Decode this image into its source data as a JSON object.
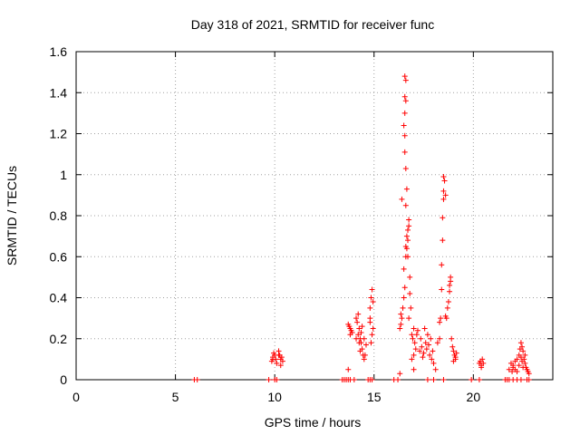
{
  "chart_data": {
    "type": "scatter",
    "title": "Day 318 of 2021, SRMTID for receiver func",
    "xlabel": "GPS time / hours",
    "ylabel": "SRMTID / TECUs",
    "xlim": [
      0,
      24
    ],
    "ylim": [
      0,
      1.6
    ],
    "xticks": [
      0,
      5,
      10,
      15,
      20
    ],
    "xtick_labels": [
      "0",
      "5",
      "10",
      "15",
      "20"
    ],
    "yticks": [
      0,
      0.2,
      0.4,
      0.6,
      0.8,
      1.0,
      1.2,
      1.4,
      1.6
    ],
    "ytick_labels": [
      "0",
      "0.2",
      "0.4",
      "0.6",
      "0.8",
      "1",
      "1.2",
      "1.4",
      "1.6"
    ],
    "grid": true,
    "marker": "+",
    "color": "#ff0000",
    "series": [
      {
        "name": "SRMTID",
        "points": [
          [
            5.95,
            0
          ],
          [
            6.1,
            0
          ],
          [
            9.7,
            0
          ],
          [
            10.0,
            0
          ],
          [
            10.1,
            0
          ],
          [
            9.85,
            0.09
          ],
          [
            9.9,
            0.11
          ],
          [
            9.95,
            0.13
          ],
          [
            10.0,
            0.12
          ],
          [
            10.05,
            0.1
          ],
          [
            10.1,
            0.08
          ],
          [
            9.9,
            0.1
          ],
          [
            10.2,
            0.14
          ],
          [
            10.25,
            0.12
          ],
          [
            10.3,
            0.1
          ],
          [
            10.35,
            0.11
          ],
          [
            10.4,
            0.09
          ],
          [
            10.3,
            0.07
          ],
          [
            10.2,
            0.12
          ],
          [
            13.4,
            0
          ],
          [
            13.5,
            0
          ],
          [
            13.6,
            0
          ],
          [
            13.7,
            0
          ],
          [
            13.8,
            0
          ],
          [
            14.0,
            0
          ],
          [
            14.7,
            0
          ],
          [
            14.8,
            0
          ],
          [
            14.9,
            0
          ],
          [
            13.7,
            0.05
          ],
          [
            13.75,
            0.26
          ],
          [
            13.8,
            0.25
          ],
          [
            13.85,
            0.24
          ],
          [
            13.9,
            0.23
          ],
          [
            13.7,
            0.27
          ],
          [
            13.8,
            0.22
          ],
          [
            14.1,
            0.3
          ],
          [
            14.15,
            0.28
          ],
          [
            14.2,
            0.32
          ],
          [
            14.25,
            0.25
          ],
          [
            14.3,
            0.2
          ],
          [
            14.35,
            0.18
          ],
          [
            14.4,
            0.15
          ],
          [
            14.45,
            0.12
          ],
          [
            14.5,
            0.1
          ],
          [
            14.2,
            0.22
          ],
          [
            14.3,
            0.14
          ],
          [
            14.4,
            0.26
          ],
          [
            14.5,
            0.2
          ],
          [
            14.6,
            0.17
          ],
          [
            14.1,
            0.2
          ],
          [
            14.25,
            0.18
          ],
          [
            14.35,
            0.23
          ],
          [
            14.55,
            0.12
          ],
          [
            14.8,
            0.35
          ],
          [
            14.85,
            0.4
          ],
          [
            14.9,
            0.44
          ],
          [
            14.95,
            0.38
          ],
          [
            14.8,
            0.28
          ],
          [
            14.9,
            0.22
          ],
          [
            14.85,
            0.18
          ],
          [
            14.95,
            0.25
          ],
          [
            14.8,
            0.3
          ],
          [
            16.0,
            0
          ],
          [
            16.2,
            0
          ],
          [
            16.3,
            0.03
          ],
          [
            16.3,
            0.25
          ],
          [
            16.35,
            0.27
          ],
          [
            16.4,
            0.3
          ],
          [
            16.45,
            0.35
          ],
          [
            16.5,
            0.4
          ],
          [
            16.55,
            0.45
          ],
          [
            16.5,
            0.54
          ],
          [
            16.6,
            0.6
          ],
          [
            16.6,
            0.65
          ],
          [
            16.65,
            0.7
          ],
          [
            16.7,
            0.68
          ],
          [
            16.7,
            0.73
          ],
          [
            16.75,
            0.75
          ],
          [
            16.75,
            0.78
          ],
          [
            16.6,
            0.85
          ],
          [
            16.65,
            0.93
          ],
          [
            16.6,
            1.03
          ],
          [
            16.55,
            1.11
          ],
          [
            16.55,
            1.19
          ],
          [
            16.5,
            1.24
          ],
          [
            16.55,
            1.3
          ],
          [
            16.6,
            1.36
          ],
          [
            16.55,
            1.38
          ],
          [
            16.6,
            1.46
          ],
          [
            16.55,
            1.48
          ],
          [
            16.4,
            0.88
          ],
          [
            16.8,
            0.5
          ],
          [
            16.8,
            0.42
          ],
          [
            16.85,
            0.35
          ],
          [
            16.75,
            0.3
          ],
          [
            16.7,
            0.6
          ],
          [
            16.65,
            0.64
          ],
          [
            16.35,
            0.32
          ],
          [
            16.9,
            0.22
          ],
          [
            16.95,
            0.2
          ],
          [
            17.0,
            0.25
          ],
          [
            17.05,
            0.18
          ],
          [
            17.1,
            0.15
          ],
          [
            17.15,
            0.22
          ],
          [
            17.2,
            0.24
          ],
          [
            16.9,
            0.1
          ],
          [
            17.0,
            0.12
          ],
          [
            17.0,
            0.05
          ],
          [
            17.3,
            0.14
          ],
          [
            17.4,
            0.16
          ],
          [
            17.5,
            0.13
          ],
          [
            17.6,
            0.18
          ],
          [
            17.7,
            0.22
          ],
          [
            17.8,
            0.12
          ],
          [
            17.9,
            0.1
          ],
          [
            18.0,
            0.08
          ],
          [
            18.1,
            0.05
          ],
          [
            18.2,
            0.18
          ],
          [
            17.35,
            0.2
          ],
          [
            17.45,
            0.11
          ],
          [
            17.55,
            0.25
          ],
          [
            17.65,
            0.15
          ],
          [
            17.75,
            0.17
          ],
          [
            17.85,
            0.2
          ],
          [
            17.95,
            0.14
          ],
          [
            18.3,
            0.2
          ],
          [
            18.3,
            0.28
          ],
          [
            18.35,
            0.3
          ],
          [
            18.4,
            0.44
          ],
          [
            18.4,
            0.56
          ],
          [
            18.45,
            0.68
          ],
          [
            18.45,
            0.79
          ],
          [
            18.5,
            0.88
          ],
          [
            18.5,
            0.92
          ],
          [
            18.55,
            0.97
          ],
          [
            18.5,
            0.99
          ],
          [
            18.6,
            0.9
          ],
          [
            18.6,
            0.31
          ],
          [
            18.65,
            0.3
          ],
          [
            18.7,
            0.35
          ],
          [
            18.75,
            0.38
          ],
          [
            18.8,
            0.46
          ],
          [
            18.85,
            0.48
          ],
          [
            18.85,
            0.5
          ],
          [
            18.8,
            0.43
          ],
          [
            18.9,
            0.2
          ],
          [
            18.95,
            0.16
          ],
          [
            19.0,
            0.14
          ],
          [
            19.05,
            0.12
          ],
          [
            19.1,
            0.1
          ],
          [
            19.15,
            0.13
          ],
          [
            19.0,
            0.09
          ],
          [
            19.1,
            0.11
          ],
          [
            18.5,
            0
          ],
          [
            18.0,
            0
          ],
          [
            17.7,
            0
          ],
          [
            19.9,
            0
          ],
          [
            20.3,
            0
          ],
          [
            20.3,
            0.08
          ],
          [
            20.35,
            0.09
          ],
          [
            20.4,
            0.07
          ],
          [
            20.45,
            0.1
          ],
          [
            20.5,
            0.08
          ],
          [
            20.4,
            0.06
          ],
          [
            21.6,
            0
          ],
          [
            21.7,
            0
          ],
          [
            21.8,
            0
          ],
          [
            22.0,
            0
          ],
          [
            22.2,
            0
          ],
          [
            22.4,
            0
          ],
          [
            22.7,
            0
          ],
          [
            22.8,
            0
          ],
          [
            21.8,
            0.05
          ],
          [
            21.9,
            0.08
          ],
          [
            22.0,
            0.06
          ],
          [
            22.1,
            0.09
          ],
          [
            22.2,
            0.1
          ],
          [
            22.3,
            0.12
          ],
          [
            22.35,
            0.15
          ],
          [
            22.4,
            0.18
          ],
          [
            22.45,
            0.16
          ],
          [
            22.5,
            0.14
          ],
          [
            22.55,
            0.1
          ],
          [
            22.6,
            0.08
          ],
          [
            22.65,
            0.06
          ],
          [
            22.7,
            0.05
          ],
          [
            22.75,
            0.04
          ],
          [
            22.8,
            0.03
          ],
          [
            22.3,
            0.07
          ],
          [
            22.4,
            0.11
          ],
          [
            22.5,
            0.06
          ],
          [
            22.6,
            0.12
          ],
          [
            22.2,
            0.04
          ],
          [
            22.1,
            0.05
          ],
          [
            22.0,
            0.07
          ],
          [
            21.95,
            0.04
          ],
          [
            22.45,
            0.09
          ]
        ]
      }
    ]
  }
}
